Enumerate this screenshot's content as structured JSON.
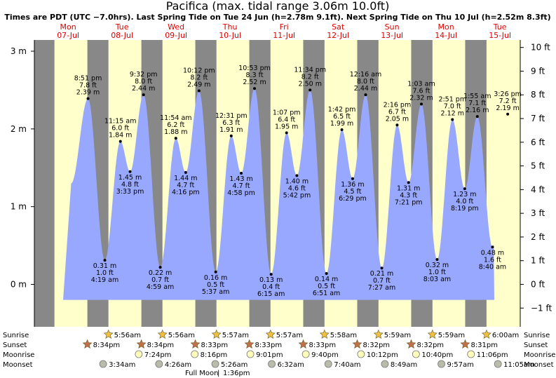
{
  "title": "Pacifica (max. tidal range 3.06m 10.0ft)",
  "subtitle": "Times are PDT (UTC −7.0hrs). Last Spring Tide on Tue 24 Jun (h=2.78m 9.1ft). Next Spring Tide on Thu 10 Jul (h=2.52m 8.3ft)",
  "colors": {
    "day": "#ffffcc",
    "night": "#888888",
    "tide": "#99a8ff",
    "day_label": "#e00000",
    "sun": "#f0c040",
    "sunset": "#c0704a",
    "moonrise": "#ffffbb",
    "moonset": "#bbbbaa"
  },
  "chart_data": {
    "type": "area",
    "x_unit": "hours from 07-Jul 00:00",
    "y_unit": "m",
    "ylim": [
      -0.53,
      3.06
    ],
    "left_axis": {
      "ticks": [
        0,
        1,
        2,
        3
      ],
      "labels": [
        "0 m",
        "1 m",
        "2 m",
        "3 m"
      ]
    },
    "right_axis": {
      "ticks": [
        -1,
        0,
        1,
        2,
        3,
        4,
        5,
        6,
        7,
        8,
        9,
        10
      ],
      "labels": [
        "−1 ft",
        "0 ft",
        "1 ft",
        "2 ft",
        "3 ft",
        "4 ft",
        "5 ft",
        "6 ft",
        "7 ft",
        "8 ft",
        "9 ft",
        "10 ft"
      ]
    },
    "days": [
      {
        "dow": "Mon",
        "date": "07-Jul"
      },
      {
        "dow": "Tue",
        "date": "08-Jul"
      },
      {
        "dow": "Wed",
        "date": "09-Jul"
      },
      {
        "dow": "Thu",
        "date": "10-Jul"
      },
      {
        "dow": "Fri",
        "date": "11-Jul"
      },
      {
        "dow": "Sat",
        "date": "12-Jul"
      },
      {
        "dow": "Sun",
        "date": "13-Jul"
      },
      {
        "dow": "Mon",
        "date": "14-Jul"
      },
      {
        "dow": "Tue",
        "date": "15-Jul"
      }
    ],
    "nights": [
      [
        -3,
        5.93
      ],
      [
        20.57,
        29.93
      ],
      [
        44.57,
        53.95
      ],
      [
        68.55,
        77.95
      ],
      [
        92.55,
        101.97
      ],
      [
        116.53,
        125.98
      ],
      [
        140.53,
        149.98
      ],
      [
        164.52,
        173.98
      ],
      [
        188.52,
        198
      ]
    ],
    "tides": [
      {
        "t": 20.85,
        "h": 2.39,
        "label": [
          "8:51 pm",
          "7.8 ft",
          "2.39 m"
        ],
        "type": "high"
      },
      {
        "t": 28.32,
        "h": 0.31,
        "label": [
          "0.31 m",
          "1.0 ft",
          "4:19 am"
        ],
        "type": "low"
      },
      {
        "t": 35.25,
        "h": 1.84,
        "label": [
          "11:15 am",
          "6.0 ft",
          "1.84 m"
        ],
        "type": "high"
      },
      {
        "t": 39.55,
        "h": 1.45,
        "label": [
          "1.45 m",
          "4.8 ft",
          "3:33 pm"
        ],
        "type": "low"
      },
      {
        "t": 45.53,
        "h": 2.44,
        "label": [
          "9:32 pm",
          "8.0 ft",
          "2.44 m"
        ],
        "type": "high"
      },
      {
        "t": 52.98,
        "h": 0.22,
        "label": [
          "0.22 m",
          "0.7 ft",
          "4:59 am"
        ],
        "type": "low"
      },
      {
        "t": 59.9,
        "h": 1.88,
        "label": [
          "11:54 am",
          "6.2 ft",
          "1.88 m"
        ],
        "type": "high"
      },
      {
        "t": 64.27,
        "h": 1.44,
        "label": [
          "1.44 m",
          "4.7 ft",
          "4:16 pm"
        ],
        "type": "low"
      },
      {
        "t": 70.2,
        "h": 2.49,
        "label": [
          "10:12 pm",
          "8.2 ft",
          "2.49 m"
        ],
        "type": "high"
      },
      {
        "t": 77.62,
        "h": 0.16,
        "label": [
          "0.16 m",
          "0.5 ft",
          "5:37 am"
        ],
        "type": "low"
      },
      {
        "t": 84.52,
        "h": 1.91,
        "label": [
          "12:31 pm",
          "6.3 ft",
          "1.91 m"
        ],
        "type": "high"
      },
      {
        "t": 88.97,
        "h": 1.43,
        "label": [
          "1.43 m",
          "4.7 ft",
          "4:58 pm"
        ],
        "type": "low"
      },
      {
        "t": 94.88,
        "h": 2.52,
        "label": [
          "10:53 pm",
          "8.3 ft",
          "2.52 m"
        ],
        "type": "high"
      },
      {
        "t": 102.25,
        "h": 0.13,
        "label": [
          "0.13 m",
          "0.4 ft",
          "6:15 am"
        ],
        "type": "low"
      },
      {
        "t": 109.12,
        "h": 1.95,
        "label": [
          "1:07 pm",
          "6.4 ft",
          "1.95 m"
        ],
        "type": "high"
      },
      {
        "t": 113.7,
        "h": 1.4,
        "label": [
          "1.40 m",
          "4.6 ft",
          "5:42 pm"
        ],
        "type": "low"
      },
      {
        "t": 119.57,
        "h": 2.5,
        "label": [
          "11:34 pm",
          "8.2 ft",
          "2.50 m"
        ],
        "type": "high"
      },
      {
        "t": 126.85,
        "h": 0.14,
        "label": [
          "0.14 m",
          "0.5 ft",
          "6:51 am"
        ],
        "type": "low"
      },
      {
        "t": 133.7,
        "h": 1.99,
        "label": [
          "1:42 pm",
          "6.5 ft",
          "1.99 m"
        ],
        "type": "high"
      },
      {
        "t": 138.48,
        "h": 1.36,
        "label": [
          "1.36 m",
          "4.5 ft",
          "6:29 pm"
        ],
        "type": "low"
      },
      {
        "t": 144.27,
        "h": 2.44,
        "label": [
          "12:16 am",
          "8.0 ft",
          "2.44 m"
        ],
        "type": "high"
      },
      {
        "t": 151.45,
        "h": 0.21,
        "label": [
          "0.21 m",
          "0.7 ft",
          "7:27 am"
        ],
        "type": "low"
      },
      {
        "t": 158.27,
        "h": 2.05,
        "label": [
          "2:16 pm",
          "6.7 ft",
          "2.05 m"
        ],
        "type": "high"
      },
      {
        "t": 163.35,
        "h": 1.31,
        "label": [
          "1.31 m",
          "4.3 ft",
          "7:21 pm"
        ],
        "type": "low"
      },
      {
        "t": 169.05,
        "h": 2.32,
        "label": [
          "1:03 am",
          "7.6 ft",
          "2.32 m"
        ],
        "type": "high"
      },
      {
        "t": 176.05,
        "h": 0.32,
        "label": [
          "0.32 m",
          "1.0 ft",
          "8:03 am"
        ],
        "type": "low"
      },
      {
        "t": 182.85,
        "h": 2.12,
        "label": [
          "2:51 pm",
          "7.0 ft",
          "2.12 m"
        ],
        "type": "high"
      },
      {
        "t": 188.32,
        "h": 1.23,
        "label": [
          "1.23 m",
          "4.0 ft",
          "8:19 pm"
        ],
        "type": "low"
      },
      {
        "t": 193.92,
        "h": 2.16,
        "label": [
          "1:55 am",
          "7.1 ft",
          "2.16 m"
        ],
        "type": "high"
      },
      {
        "t": 200.67,
        "h": 0.48,
        "label": [
          "0.48 m",
          "1.6 ft",
          "8:40 am"
        ],
        "type": "low"
      },
      {
        "t": 207.43,
        "h": 2.19,
        "label": [
          "3:26 pm",
          "7.2 ft",
          "2.19 m"
        ],
        "type": "high"
      }
    ],
    "sunrise": {
      "label": "Sunrise",
      "times": [
        "5:56am",
        "5:56am",
        "5:57am",
        "5:57am",
        "5:58am",
        "5:59am",
        "5:59am",
        "6:00am"
      ],
      "t": [
        29.93,
        53.95,
        77.95,
        101.97,
        125.98,
        149.98,
        173.98,
        198.0
      ]
    },
    "sunset": {
      "label": "Sunset",
      "times": [
        "8:34pm",
        "8:34pm",
        "8:33pm",
        "8:33pm",
        "8:33pm",
        "8:32pm",
        "8:32pm",
        "8:31pm"
      ],
      "t": [
        20.57,
        44.57,
        68.55,
        92.55,
        116.55,
        140.53,
        164.53,
        188.52
      ]
    },
    "moonrise": {
      "label": "Moonrise",
      "times": [
        "7:24pm",
        "8:16pm",
        "9:01pm",
        "9:40pm",
        "10:12pm",
        "10:40pm",
        "11:06pm"
      ],
      "t": [
        43.4,
        68.27,
        93.02,
        117.67,
        142.2,
        166.67,
        191.1
      ]
    },
    "moonset": {
      "label": "Moonset",
      "times": [
        "3:34am",
        "4:26am",
        "5:26am",
        "6:32am",
        "7:40am",
        "8:49am",
        "9:57am",
        "11:05am"
      ],
      "t": [
        27.57,
        52.43,
        77.43,
        102.53,
        127.67,
        152.82,
        177.95,
        203.08
      ]
    },
    "moon_phase": {
      "label": "Full Moon",
      "time": "1:36pm"
    }
  }
}
